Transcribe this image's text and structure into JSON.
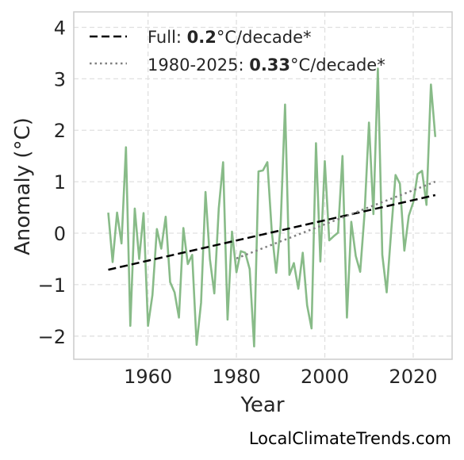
{
  "chart_data": {
    "type": "line",
    "xlabel": "Year",
    "ylabel": "Anomaly (°C)",
    "xlim": [
      1943.2,
      2028.8
    ],
    "ylim": [
      -2.45,
      4.3
    ],
    "xticks": [
      1960,
      1980,
      2000,
      2020
    ],
    "yticks": [
      -2,
      -1,
      0,
      1,
      2,
      3,
      4
    ],
    "ytick_labels": [
      "−2",
      "−1",
      "0",
      "1",
      "2",
      "3",
      "4"
    ],
    "grid": true,
    "legend_position": "top-left",
    "series": [
      {
        "style": "solid",
        "color": "#88bb88",
        "x": [
          1951,
          1952,
          1953,
          1954,
          1955,
          1956,
          1957,
          1958,
          1959,
          1960,
          1961,
          1962,
          1963,
          1964,
          1965,
          1966,
          1967,
          1968,
          1969,
          1970,
          1971,
          1972,
          1973,
          1974,
          1975,
          1976,
          1977,
          1978,
          1979,
          1980,
          1981,
          1982,
          1983,
          1984,
          1985,
          1986,
          1987,
          1988,
          1989,
          1990,
          1991,
          1992,
          1993,
          1994,
          1995,
          1996,
          1997,
          1998,
          1999,
          2000,
          2001,
          2002,
          2003,
          2004,
          2005,
          2006,
          2007,
          2008,
          2009,
          2010,
          2011,
          2012,
          2013,
          2014,
          2015,
          2016,
          2017,
          2018,
          2019,
          2020,
          2021,
          2022,
          2023,
          2024,
          2025
        ],
        "values": [
          0.4,
          -0.56,
          0.4,
          -0.2,
          1.67,
          -1.8,
          0.48,
          -0.5,
          0.39,
          -1.8,
          -1.2,
          0.08,
          -0.3,
          0.32,
          -0.95,
          -1.15,
          -1.64,
          0.1,
          -0.6,
          -0.42,
          -2.17,
          -1.35,
          0.8,
          -0.5,
          -1.17,
          0.48,
          1.38,
          -1.68,
          0.03,
          -0.76,
          -0.35,
          -0.38,
          -0.7,
          -2.2,
          1.2,
          1.22,
          1.38,
          0.04,
          -0.77,
          0.15,
          2.5,
          -0.81,
          -0.58,
          -1.08,
          -0.38,
          -1.4,
          -1.85,
          1.75,
          -0.55,
          1.4,
          -0.14,
          -0.06,
          0.01,
          1.5,
          -1.64,
          0.22,
          -0.44,
          -0.75,
          0.4,
          2.15,
          0.37,
          3.2,
          -0.42,
          -1.15,
          0.02,
          1.13,
          0.96,
          -0.34,
          0.34,
          0.6,
          1.15,
          1.21,
          0.55,
          2.89,
          1.87
        ]
      },
      {
        "name": "Full",
        "style": "dashed",
        "color": "#000000",
        "trend_value": "0.2",
        "trend_unit": "°C/decade*",
        "x": [
          1951,
          2025
        ],
        "values": [
          -0.71,
          0.74
        ]
      },
      {
        "name": "1980-2025",
        "style": "dotted",
        "color": "#808080",
        "trend_value": "0.33",
        "trend_unit": "°C/decade*",
        "x": [
          1980,
          2025
        ],
        "values": [
          -0.49,
          1.0
        ]
      }
    ]
  },
  "legend": {
    "full_prefix": "Full: ",
    "full_value": "0.2",
    "full_unit": "°C/decade*",
    "recent_prefix": "1980-2025: ",
    "recent_value": "0.33",
    "recent_unit": "°C/decade*"
  },
  "watermark": "LocalClimateTrends.com"
}
